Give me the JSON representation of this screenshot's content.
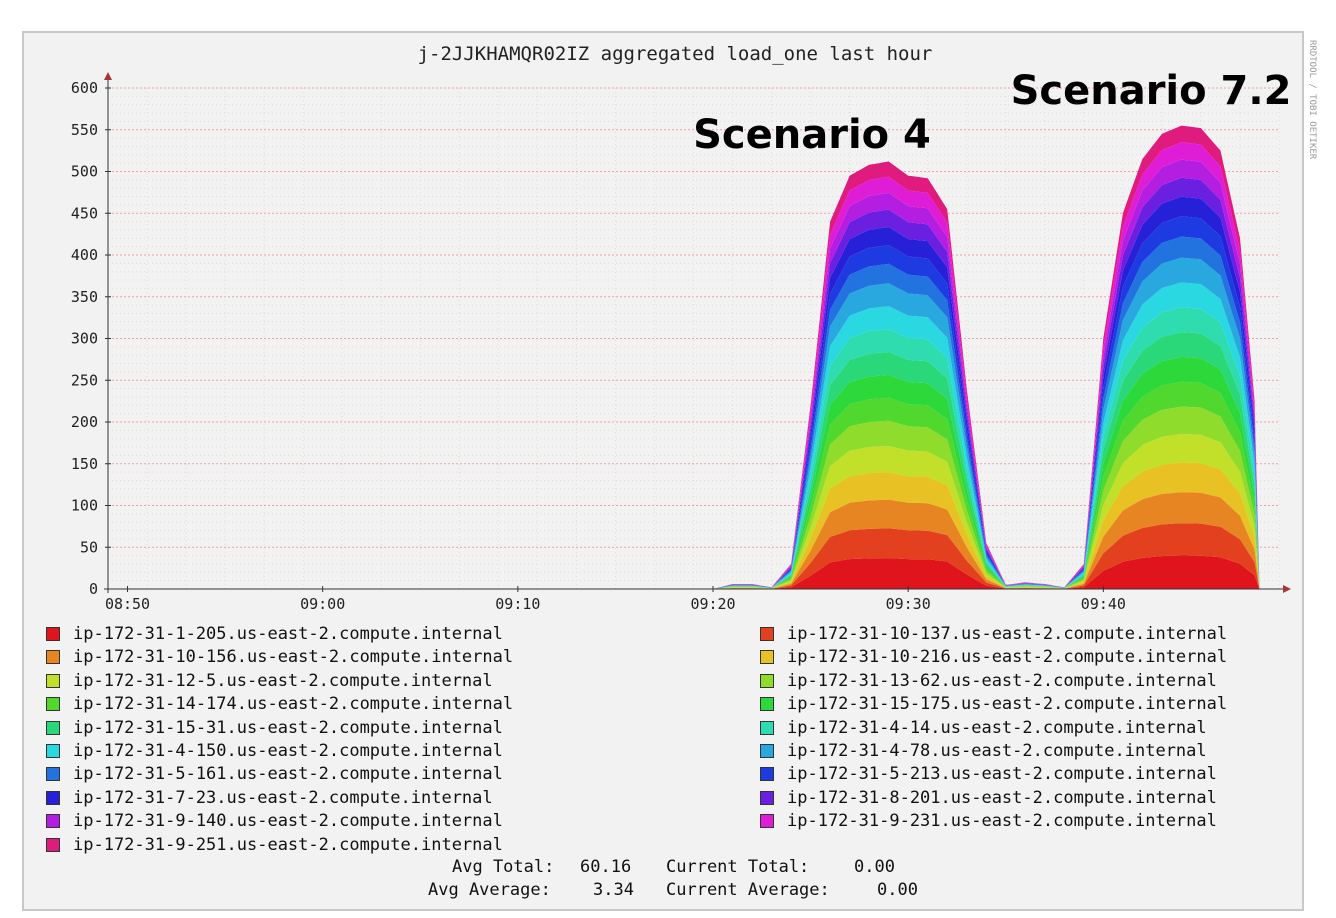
{
  "chart_data": {
    "type": "area",
    "title": "j-2JJKHAMQR02IZ aggregated load_one last hour",
    "annotations": [
      "Scenario 4",
      "Scenario 7.2"
    ],
    "side_label": "RRDTOOL / TOBI OETIKER",
    "y_ticks": [
      "0",
      "50",
      "100",
      "150",
      "200",
      "250",
      "300",
      "350",
      "400",
      "450",
      "500",
      "550",
      "600"
    ],
    "ylim": [
      0,
      600
    ],
    "x_ticks": [
      "08:50",
      "09:00",
      "09:10",
      "09:20",
      "09:30",
      "09:40"
    ],
    "xlim": [
      "08:49",
      "09:49"
    ],
    "grid": true,
    "legend_position": "bottom",
    "stacked": true,
    "total_profile": {
      "x": [
        "09:20",
        "09:21",
        "09:22",
        "09:23",
        "09:24",
        "09:25",
        "09:26",
        "09:27",
        "09:28",
        "09:29",
        "09:30",
        "09:31",
        "09:32",
        "09:33",
        "09:34",
        "09:35",
        "09:36",
        "09:37",
        "09:38",
        "09:39",
        "09:40",
        "09:41",
        "09:42",
        "09:43",
        "09:44",
        "09:45",
        "09:46",
        "09:47",
        "09:48"
      ],
      "y": [
        0,
        6,
        6,
        2,
        30,
        220,
        440,
        495,
        508,
        512,
        495,
        492,
        455,
        240,
        55,
        5,
        8,
        6,
        2,
        30,
        300,
        450,
        515,
        545,
        555,
        552,
        525,
        420,
        160
      ]
    },
    "series": [
      {
        "name": "ip-172-31-1-205.us-east-2.compute.internal",
        "color": "#e0141c"
      },
      {
        "name": "ip-172-31-10-137.us-east-2.compute.internal",
        "color": "#e2401f"
      },
      {
        "name": "ip-172-31-10-156.us-east-2.compute.internal",
        "color": "#e68522"
      },
      {
        "name": "ip-172-31-10-216.us-east-2.compute.internal",
        "color": "#e8c124"
      },
      {
        "name": "ip-172-31-12-5.us-east-2.compute.internal",
        "color": "#c2e02a"
      },
      {
        "name": "ip-172-31-13-62.us-east-2.compute.internal",
        "color": "#8fdc2c"
      },
      {
        "name": "ip-172-31-14-174.us-east-2.compute.internal",
        "color": "#50d82e"
      },
      {
        "name": "ip-172-31-15-175.us-east-2.compute.internal",
        "color": "#2cd83a"
      },
      {
        "name": "ip-172-31-15-31.us-east-2.compute.internal",
        "color": "#2ad87a"
      },
      {
        "name": "ip-172-31-4-14.us-east-2.compute.internal",
        "color": "#2edcb0"
      },
      {
        "name": "ip-172-31-4-150.us-east-2.compute.internal",
        "color": "#2ad8e2"
      },
      {
        "name": "ip-172-31-4-78.us-east-2.compute.internal",
        "color": "#29a8e0"
      },
      {
        "name": "ip-172-31-5-161.us-east-2.compute.internal",
        "color": "#2273e0"
      },
      {
        "name": "ip-172-31-5-213.us-east-2.compute.internal",
        "color": "#1d3be0"
      },
      {
        "name": "ip-172-31-7-23.us-east-2.compute.internal",
        "color": "#2620d8"
      },
      {
        "name": "ip-172-31-8-201.us-east-2.compute.internal",
        "color": "#6b1fe0"
      },
      {
        "name": "ip-172-31-9-140.us-east-2.compute.internal",
        "color": "#b31ee0"
      },
      {
        "name": "ip-172-31-9-231.us-east-2.compute.internal",
        "color": "#e01dd6"
      },
      {
        "name": "ip-172-31-9-251.us-east-2.compute.internal",
        "color": "#e01b7e"
      }
    ]
  },
  "summary": {
    "avg_total_label": "Avg Total:",
    "avg_total_value": "60.16",
    "current_total_label": "Current Total:",
    "current_total_value": "0.00",
    "avg_average_label": "Avg Average:",
    "avg_average_value": "3.34",
    "current_average_label": "Current Average:",
    "current_average_value": "0.00"
  }
}
